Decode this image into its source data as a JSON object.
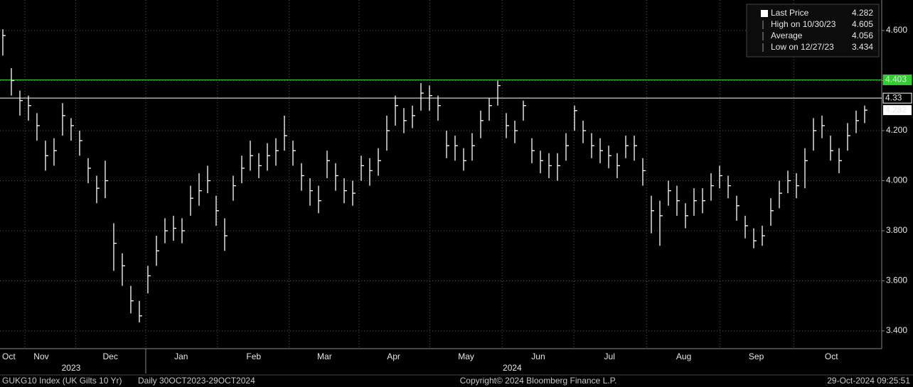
{
  "chart_data": {
    "type": "ohlc-bar",
    "title": "GUKG10 Index (UK Gilts 10 Yr)",
    "subtitle": "Daily 30OCT2023-29OCT2024",
    "copyright": "Copyright© 2024 Bloomberg Finance L.P.",
    "timestamp": "29-Oct-2024 09:25:51",
    "years": [
      {
        "value": 8,
        "label": "2023"
      },
      {
        "value": 59.7,
        "label": "2024"
      }
    ],
    "color": "#ffffff",
    "ylim": [
      3.329,
      4.722
    ],
    "yticks": [
      {
        "value": 3.4,
        "label": "3.400"
      },
      {
        "value": 3.6,
        "label": "3.600"
      },
      {
        "value": 3.8,
        "label": "3.800"
      },
      {
        "value": 4.0,
        "label": "4.000"
      },
      {
        "value": 4.2,
        "label": "4.200"
      },
      {
        "value": 4.4,
        "label": "4.400"
      },
      {
        "value": 4.6,
        "label": "4.600"
      }
    ],
    "xlim": [
      -0.33,
      103
    ],
    "xticks": [
      {
        "value": 0.7,
        "label": "Oct"
      },
      {
        "value": 4.5,
        "label": "Nov"
      },
      {
        "value": 12.6,
        "label": "Dec"
      },
      {
        "value": 20.9,
        "label": "Jan"
      },
      {
        "value": 29.4,
        "label": "Feb"
      },
      {
        "value": 37.7,
        "label": "Mar"
      },
      {
        "value": 45.8,
        "label": "Apr"
      },
      {
        "value": 54.3,
        "label": "May"
      },
      {
        "value": 62.75,
        "label": "Jun"
      },
      {
        "value": 71.1,
        "label": "Jul"
      },
      {
        "value": 79.8,
        "label": "Aug"
      },
      {
        "value": 88.3,
        "label": "Sep"
      },
      {
        "value": 97.1,
        "label": "Oct"
      }
    ],
    "grid": true,
    "high": [
      4.605,
      4.45,
      4.36,
      4.34,
      4.27,
      4.16,
      4.17,
      4.31,
      4.25,
      4.2,
      4.09,
      4.02,
      4.08,
      3.83,
      3.71,
      3.58,
      3.52,
      3.66,
      3.78,
      3.85,
      3.86,
      3.85,
      3.98,
      4.03,
      4.06,
      3.94,
      3.85,
      4.02,
      4.1,
      4.16,
      4.11,
      4.15,
      4.17,
      4.26,
      4.16,
      4.07,
      4.01,
      3.98,
      4.12,
      4.07,
      4.01,
      4.0,
      4.1,
      4.09,
      4.13,
      4.26,
      4.34,
      4.29,
      4.3,
      4.39,
      4.38,
      4.34,
      4.2,
      4.18,
      4.13,
      4.19,
      4.28,
      4.33,
      4.4,
      4.27,
      4.24,
      4.32,
      4.17,
      4.12,
      4.11,
      4.11,
      4.19,
      4.3,
      4.24,
      4.19,
      4.17,
      4.14,
      4.11,
      4.18,
      4.18,
      4.09,
      3.94,
      3.92,
      4.0,
      3.98,
      3.91,
      3.97,
      3.97,
      4.03,
      4.06,
      4.02,
      3.94,
      3.86,
      3.81,
      3.82,
      3.93,
      4.0,
      4.04,
      4.03,
      4.13,
      4.25,
      4.26,
      4.18,
      4.13,
      4.23,
      4.28,
      4.3
    ],
    "low": [
      4.5,
      4.34,
      4.26,
      4.24,
      4.16,
      4.04,
      4.06,
      4.18,
      4.16,
      4.1,
      3.99,
      3.91,
      3.93,
      3.64,
      3.58,
      3.47,
      3.434,
      3.55,
      3.66,
      3.75,
      3.76,
      3.75,
      3.86,
      3.9,
      3.95,
      3.82,
      3.72,
      3.92,
      3.99,
      4.04,
      4.01,
      4.04,
      4.06,
      4.12,
      4.06,
      3.96,
      3.9,
      3.87,
      4.01,
      3.96,
      3.91,
      3.9,
      4.0,
      3.98,
      4.02,
      4.12,
      4.22,
      4.19,
      4.21,
      4.28,
      4.28,
      4.24,
      4.09,
      4.08,
      4.04,
      4.08,
      4.17,
      4.24,
      4.3,
      4.17,
      4.15,
      4.24,
      4.07,
      4.03,
      4.01,
      4.0,
      4.08,
      4.2,
      4.15,
      4.09,
      4.07,
      4.05,
      4.01,
      4.09,
      4.08,
      3.98,
      3.79,
      3.74,
      3.9,
      3.86,
      3.81,
      3.86,
      3.87,
      3.92,
      3.97,
      3.93,
      3.84,
      3.77,
      3.73,
      3.74,
      3.82,
      3.89,
      3.95,
      3.93,
      3.97,
      4.12,
      4.17,
      4.08,
      4.03,
      4.12,
      4.19,
      4.23
    ],
    "close": [
      4.58,
      4.4,
      4.32,
      4.3,
      4.22,
      4.1,
      4.12,
      4.26,
      4.22,
      4.16,
      4.05,
      3.97,
      4.0,
      3.75,
      3.66,
      3.52,
      3.46,
      3.62,
      3.72,
      3.8,
      3.81,
      3.8,
      3.93,
      3.96,
      4.0,
      3.88,
      3.78,
      3.98,
      4.05,
      4.1,
      4.06,
      4.1,
      4.12,
      4.18,
      4.12,
      4.02,
      3.96,
      3.92,
      4.08,
      4.02,
      3.96,
      3.95,
      4.06,
      4.04,
      4.08,
      4.2,
      4.3,
      4.24,
      4.26,
      4.35,
      4.34,
      4.3,
      4.14,
      4.14,
      4.08,
      4.14,
      4.24,
      4.3,
      4.38,
      4.22,
      4.2,
      4.3,
      4.12,
      4.08,
      4.06,
      4.06,
      4.14,
      4.28,
      4.2,
      4.14,
      4.12,
      4.1,
      4.06,
      4.14,
      4.14,
      4.04,
      3.88,
      3.86,
      3.96,
      3.92,
      3.86,
      3.92,
      3.92,
      3.98,
      4.02,
      3.98,
      3.9,
      3.82,
      3.76,
      3.78,
      3.88,
      3.95,
      4.0,
      3.98,
      4.08,
      4.2,
      4.22,
      4.12,
      4.08,
      4.18,
      4.24,
      4.282
    ],
    "hlines": [
      {
        "value": 4.403,
        "color": "#33cc33"
      },
      {
        "value": 4.33,
        "color": "#ffffff"
      }
    ],
    "legend": [
      {
        "name": "Last Price",
        "value": 4.282
      },
      {
        "name": "High on 10/30/23",
        "value": 4.605
      },
      {
        "name": "Average",
        "value": 4.056
      },
      {
        "name": "Low on 12/27/23",
        "value": 3.434
      }
    ]
  }
}
